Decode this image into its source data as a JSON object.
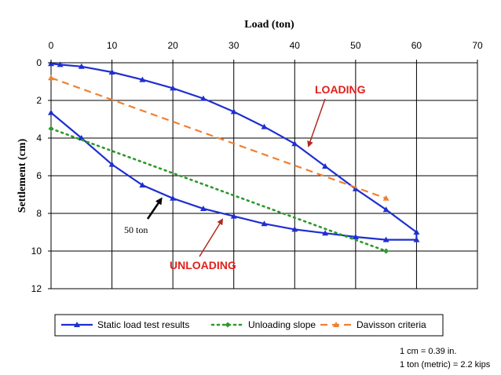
{
  "chart_data": {
    "type": "line",
    "xlabel": "Load (ton)",
    "ylabel": "Settlement (cm)",
    "xlim": [
      0,
      70
    ],
    "ylim": [
      0,
      12
    ],
    "y_inverted": true,
    "x_axis_position": "top",
    "x_ticks": [
      "0",
      "10",
      "20",
      "30",
      "40",
      "50",
      "60",
      "70"
    ],
    "y_ticks": [
      "0",
      "2",
      "4",
      "6",
      "8",
      "10",
      "12"
    ],
    "grid": true,
    "legend_position": "bottom",
    "series": [
      {
        "name": "Static load test results",
        "color": "#1f2fd0",
        "marker": "triangle",
        "dash": "solid",
        "points": [
          [
            0,
            0.05
          ],
          [
            1.5,
            0.1
          ],
          [
            5,
            0.2
          ],
          [
            10,
            0.5
          ],
          [
            15,
            0.9
          ],
          [
            20,
            1.35
          ],
          [
            25,
            1.9
          ],
          [
            30,
            2.6
          ],
          [
            35,
            3.4
          ],
          [
            40,
            4.3
          ],
          [
            45,
            5.5
          ],
          [
            50,
            6.7
          ],
          [
            55,
            7.8
          ],
          [
            60,
            9.0
          ],
          [
            60,
            9.4
          ],
          [
            55,
            9.4
          ],
          [
            50,
            9.25
          ],
          [
            45,
            9.05
          ],
          [
            40,
            8.85
          ],
          [
            35,
            8.55
          ],
          [
            30,
            8.15
          ],
          [
            25,
            7.75
          ],
          [
            20,
            7.2
          ],
          [
            15,
            6.5
          ],
          [
            10,
            5.4
          ],
          [
            5,
            4.0
          ],
          [
            0,
            2.65
          ]
        ]
      },
      {
        "name": "Unloading slope",
        "color": "#2a9a2a",
        "marker": "diamond",
        "dash": "dotted",
        "points": [
          [
            0,
            3.5
          ],
          [
            55,
            10.0
          ]
        ]
      },
      {
        "name": "Davisson criteria",
        "color": "#f08030",
        "marker": "triangle",
        "dash": "dashed",
        "points": [
          [
            0,
            0.8
          ],
          [
            55,
            7.2
          ]
        ]
      }
    ],
    "annotations": [
      {
        "text": "LOADING",
        "color": "#e0201a",
        "target": [
          42,
          4.6
        ]
      },
      {
        "text": "UNLOADING",
        "color": "#e0201a",
        "target": [
          29,
          8.3
        ]
      },
      {
        "text": "50 ton",
        "color": "#000000",
        "target": [
          18.5,
          7.3
        ]
      }
    ],
    "notes": [
      "1 cm = 0.39 in.",
      "1 ton (metric) = 2.2 kips"
    ]
  }
}
